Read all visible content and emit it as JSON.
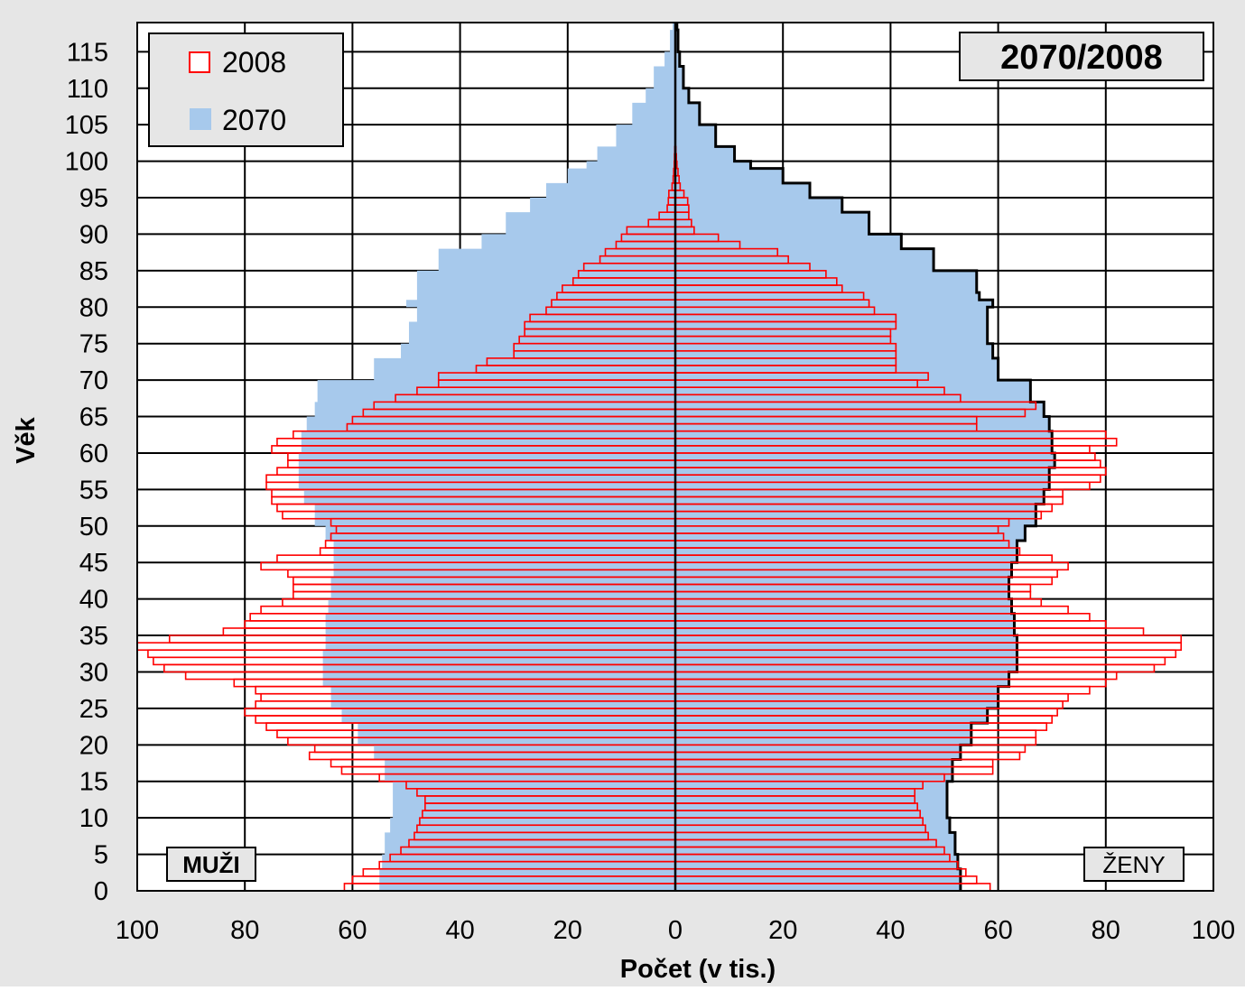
{
  "chart_data": {
    "type": "population-pyramid",
    "title": "2070/2008",
    "xlabel": "Počet (v tis.)",
    "ylabel": "Věk",
    "xlim": [
      -100,
      100
    ],
    "ylim": [
      0,
      119
    ],
    "x_ticks": [
      -100,
      -80,
      -60,
      -40,
      -20,
      0,
      20,
      40,
      60,
      80,
      100
    ],
    "x_tick_labels": [
      "100",
      "80",
      "60",
      "40",
      "20",
      "0",
      "20",
      "40",
      "60",
      "80",
      "100"
    ],
    "y_ticks": [
      0,
      5,
      10,
      15,
      20,
      25,
      30,
      35,
      40,
      45,
      50,
      55,
      60,
      65,
      70,
      75,
      80,
      85,
      90,
      95,
      100,
      105,
      110,
      115
    ],
    "grid": true,
    "legend_position": "top-left",
    "side_labels": {
      "left": "MUŽI",
      "right": "ŽENY"
    },
    "colors": {
      "s2008": "#ff0000",
      "s2070": "#a7c9ec",
      "frame": "#000000",
      "panel": "#e6e6e6"
    },
    "series": [
      {
        "name": "2008",
        "style": "outline bars",
        "ages": [
          0,
          1,
          2,
          3,
          4,
          5,
          6,
          7,
          8,
          9,
          10,
          11,
          12,
          13,
          14,
          15,
          16,
          17,
          18,
          19,
          20,
          21,
          22,
          23,
          24,
          25,
          26,
          27,
          28,
          29,
          30,
          31,
          32,
          33,
          34,
          35,
          36,
          37,
          38,
          39,
          40,
          41,
          42,
          43,
          44,
          45,
          46,
          47,
          48,
          49,
          50,
          51,
          52,
          53,
          54,
          55,
          56,
          57,
          58,
          59,
          60,
          61,
          62,
          63,
          64,
          65,
          66,
          67,
          68,
          69,
          70,
          71,
          72,
          73,
          74,
          75,
          76,
          77,
          78,
          79,
          80,
          81,
          82,
          83,
          84,
          85,
          86,
          87,
          88,
          89,
          90,
          91,
          92,
          93,
          94,
          95,
          96,
          97,
          98,
          99,
          100,
          101
        ],
        "male": [
          61.5,
          60,
          58,
          55,
          53,
          51,
          49.5,
          48.5,
          48,
          47.5,
          47,
          46.5,
          46.5,
          48,
          50,
          55,
          62,
          64,
          68,
          67,
          72,
          74,
          76,
          78,
          80,
          78,
          77,
          78,
          82,
          91,
          95,
          97,
          98,
          100,
          94,
          84,
          80,
          79,
          77,
          73,
          71,
          71,
          71,
          72,
          77,
          74,
          66,
          65,
          64,
          63,
          64,
          73,
          74,
          75,
          75,
          76,
          76,
          74,
          72,
          72,
          75,
          74,
          71,
          61,
          60,
          58,
          56,
          52,
          48,
          44,
          44,
          37,
          35,
          30,
          30,
          29,
          28,
          28,
          27,
          24,
          23,
          22,
          21,
          19,
          18,
          17,
          14,
          13,
          11,
          10,
          9,
          5,
          3,
          1.5,
          1.3,
          1.2,
          0.6,
          0.4,
          0.3,
          0.2,
          0.15,
          0.1
        ],
        "female": [
          58.5,
          56,
          54,
          52.5,
          51,
          50,
          48.5,
          47,
          46.5,
          46,
          45.5,
          45,
          44.5,
          44.5,
          46,
          50,
          59,
          59,
          64,
          65,
          67,
          67,
          69,
          70,
          71,
          72,
          73,
          77,
          80,
          82,
          89,
          91,
          93,
          94,
          94,
          87,
          80,
          77,
          73,
          68,
          66,
          66,
          70,
          71,
          73,
          70,
          64,
          62,
          61,
          60,
          62,
          68,
          70,
          72,
          72,
          77,
          79,
          80,
          79,
          78,
          77,
          82,
          80,
          56,
          56,
          65,
          67,
          53,
          50,
          45,
          47,
          41,
          41,
          41,
          41,
          40,
          40,
          41,
          41,
          37,
          36,
          35,
          31,
          30,
          28,
          25,
          21,
          19,
          12,
          8,
          3.5,
          3,
          2.5,
          2.5,
          2.3,
          1.6,
          0.9,
          0.7,
          0.5,
          0.3,
          0.2,
          0.1
        ]
      },
      {
        "name": "2070",
        "style": "filled area",
        "ages": [
          0,
          3,
          5,
          8,
          10,
          13,
          15,
          18,
          20,
          23,
          25,
          28,
          30,
          33,
          35,
          38,
          40,
          43,
          45,
          48,
          50,
          53,
          55,
          58,
          60,
          63,
          65,
          67,
          70,
          73,
          75,
          78,
          80,
          81,
          82,
          85,
          88,
          90,
          93,
          95,
          97,
          99,
          100,
          102,
          105,
          108,
          110,
          113,
          115,
          118
        ],
        "male": [
          55,
          54.5,
          54,
          53,
          52.5,
          52.5,
          54,
          56,
          59,
          62,
          64,
          65.5,
          65.5,
          65,
          65,
          64.5,
          64,
          63.5,
          63.5,
          65,
          67,
          69,
          70,
          70,
          69.5,
          68.5,
          67,
          66.5,
          56,
          51,
          49.5,
          48,
          50,
          48,
          48,
          44,
          36,
          31.5,
          27,
          24,
          20,
          16.5,
          14.5,
          11,
          8,
          5.5,
          4,
          2,
          1,
          0.5
        ],
        "female": [
          53,
          52.5,
          52,
          51,
          50.5,
          50.5,
          51.5,
          53,
          55,
          58,
          60,
          62,
          63.5,
          63.5,
          63,
          62.5,
          62,
          62.5,
          63.5,
          65,
          67,
          68.5,
          69.5,
          70.5,
          70,
          69.5,
          68.5,
          66,
          60,
          59,
          58,
          58,
          59,
          56.5,
          56,
          48,
          42,
          36,
          31,
          25,
          20,
          14,
          11,
          7.5,
          4.5,
          2.5,
          1.5,
          0.8,
          0.5,
          0.3
        ]
      }
    ]
  }
}
